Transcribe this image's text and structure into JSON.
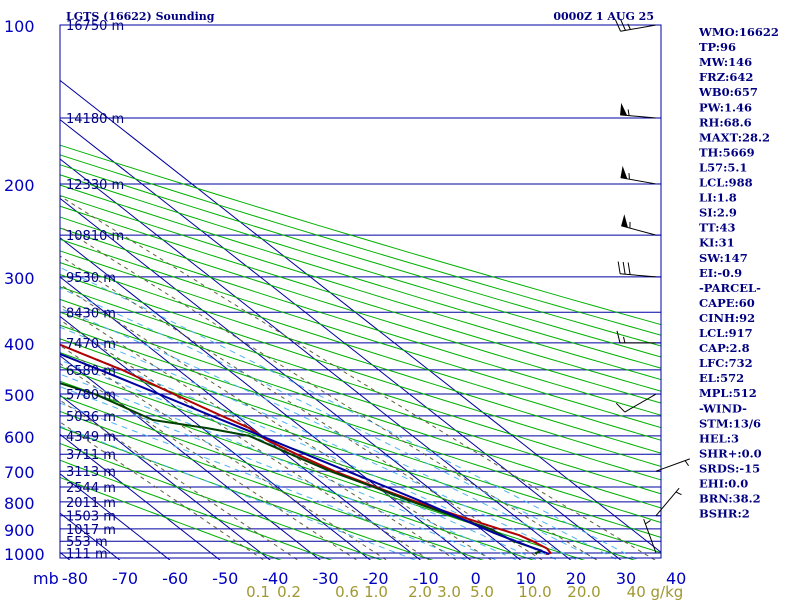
{
  "chart_data": {
    "type": "line",
    "title": "LGTS (16622) Sounding",
    "datetime": "0000Z  1 AUG 25",
    "xlabel": "",
    "ylabel": "",
    "temperature_axis": {
      "range": [
        -80,
        40
      ],
      "ticks": [
        "-80",
        "-70",
        "-60",
        "-50",
        "-40",
        "-30",
        "-20",
        "-10",
        "0",
        "10",
        "20",
        "30",
        "40"
      ]
    },
    "pressure_axis": {
      "unit_label": "mb",
      "scale": "log",
      "range": [
        100,
        1050
      ],
      "levels": [
        100,
        150,
        200,
        250,
        300,
        350,
        400,
        450,
        500,
        550,
        600,
        650,
        700,
        750,
        800,
        850,
        900,
        950,
        1000
      ],
      "labels": [
        "100",
        "200",
        "300",
        "400",
        "500",
        "600",
        "700",
        "800",
        "900",
        "1000"
      ],
      "label_values": [
        100,
        200,
        300,
        400,
        500,
        600,
        700,
        800,
        900,
        1000
      ]
    },
    "height_labels": [
      {
        "p": 100,
        "text": "16750 m"
      },
      {
        "p": 150,
        "text": "14180 m"
      },
      {
        "p": 200,
        "text": "12330 m"
      },
      {
        "p": 250,
        "text": "10810 m"
      },
      {
        "p": 300,
        "text": "9530 m"
      },
      {
        "p": 350,
        "text": "8430 m"
      },
      {
        "p": 400,
        "text": "7470 m"
      },
      {
        "p": 450,
        "text": "6580 m"
      },
      {
        "p": 500,
        "text": "5780 m"
      },
      {
        "p": 550,
        "text": "5036 m"
      },
      {
        "p": 600,
        "text": "4349 m"
      },
      {
        "p": 650,
        "text": "3711 m"
      },
      {
        "p": 700,
        "text": "3113 m"
      },
      {
        "p": 750,
        "text": "2544 m"
      },
      {
        "p": 800,
        "text": "2011 m"
      },
      {
        "p": 850,
        "text": "1503 m"
      },
      {
        "p": 900,
        "text": "1017 m"
      },
      {
        "p": 950,
        "text": "553 m"
      },
      {
        "p": 1000,
        "text": "111 m"
      }
    ],
    "mixing_ratio_labels": [
      "0.1",
      "0.2",
      "0.6",
      "1.0",
      "2.0",
      "3.0",
      "5.0",
      "10.0",
      "20.0",
      "40 g/kg"
    ],
    "series": [
      {
        "name": "",
        "role": "temperature",
        "color": "#b00000",
        "points": [
          {
            "p": 1005,
            "t": 16.6
          },
          {
            "p": 1000,
            "t": 17.8
          },
          {
            "p": 980,
            "t": 18.2
          },
          {
            "p": 950,
            "t": 17.2
          },
          {
            "p": 925,
            "t": 16.0
          },
          {
            "p": 900,
            "t": 13.6
          },
          {
            "p": 850,
            "t": 8.8
          },
          {
            "p": 800,
            "t": 4.0
          },
          {
            "p": 750,
            "t": -0.4
          },
          {
            "p": 700,
            "t": -4.6
          },
          {
            "p": 650,
            "t": -7.8
          },
          {
            "p": 610,
            "t": -10.2
          },
          {
            "p": 580,
            "t": -10.6
          },
          {
            "p": 550,
            "t": -13.0
          },
          {
            "p": 500,
            "t": -17.0
          },
          {
            "p": 450,
            "t": -21.2
          },
          {
            "p": 420,
            "t": -25.0
          },
          {
            "p": 400,
            "t": -27.6
          },
          {
            "p": 350,
            "t": -34.6
          },
          {
            "p": 320,
            "t": -38.8
          },
          {
            "p": 300,
            "t": -40.6
          },
          {
            "p": 290,
            "t": -40.2
          },
          {
            "p": 270,
            "t": -41.8
          },
          {
            "p": 250,
            "t": -46.0
          },
          {
            "p": 225,
            "t": -52.0
          },
          {
            "p": 200,
            "t": -55.8
          },
          {
            "p": 170,
            "t": -62.2
          },
          {
            "p": 150,
            "t": -69.2
          },
          {
            "p": 130,
            "t": -72.0
          },
          {
            "p": 120,
            "t": -75.4
          },
          {
            "p": 110,
            "t": -76.0
          },
          {
            "p": 100,
            "t": -79.4
          }
        ]
      },
      {
        "name": "",
        "role": "dewpoint",
        "color": "#004000",
        "points": [
          {
            "p": 1005,
            "t": 14.8
          },
          {
            "p": 1000,
            "t": 14.8
          },
          {
            "p": 990,
            "t": 16.6
          },
          {
            "p": 950,
            "t": 13.4
          },
          {
            "p": 925,
            "t": 12.6
          },
          {
            "p": 900,
            "t": 11.8
          },
          {
            "p": 850,
            "t": 7.6
          },
          {
            "p": 800,
            "t": 3.2
          },
          {
            "p": 750,
            "t": -0.8
          },
          {
            "p": 700,
            "t": -5.4
          },
          {
            "p": 650,
            "t": -9.0
          },
          {
            "p": 600,
            "t": -12.6
          },
          {
            "p": 580,
            "t": -19.0
          },
          {
            "p": 560,
            "t": -27.8
          },
          {
            "p": 500,
            "t": -32.8
          },
          {
            "p": 450,
            "t": -42.0
          },
          {
            "p": 400,
            "t": -53.6
          },
          {
            "p": 320,
            "t": -56.8
          },
          {
            "p": 300,
            "t": -66.4
          },
          {
            "p": 280,
            "t": -68.0
          },
          {
            "p": 250,
            "t": -72.8
          },
          {
            "p": 200,
            "t": -79.6
          }
        ]
      },
      {
        "name": "",
        "role": "parcel",
        "color": "#0000a0",
        "points": [
          {
            "p": 1005,
            "t": 17.2
          },
          {
            "p": 1000,
            "t": 17.0
          },
          {
            "p": 917,
            "t": 11.6
          },
          {
            "p": 850,
            "t": 8.0
          },
          {
            "p": 800,
            "t": 5.2
          },
          {
            "p": 750,
            "t": 1.8
          },
          {
            "p": 700,
            "t": -2.0
          },
          {
            "p": 650,
            "t": -6.0
          },
          {
            "p": 600,
            "t": -10.2
          },
          {
            "p": 550,
            "t": -15.0
          },
          {
            "p": 500,
            "t": -20.0
          },
          {
            "p": 450,
            "t": -25.6
          },
          {
            "p": 400,
            "t": -32.4
          },
          {
            "p": 350,
            "t": -39.8
          },
          {
            "p": 300,
            "t": -48.4
          },
          {
            "p": 250,
            "t": -58.6
          },
          {
            "p": 200,
            "t": -70.6
          },
          {
            "p": 170,
            "t": -79.4
          }
        ]
      }
    ],
    "wind_barbs": [
      {
        "p": 100,
        "dir": 260,
        "kt": 25
      },
      {
        "p": 150,
        "dir": 275,
        "kt": 55
      },
      {
        "p": 200,
        "dir": 280,
        "kt": 55
      },
      {
        "p": 250,
        "dir": 285,
        "kt": 55
      },
      {
        "p": 300,
        "dir": 275,
        "kt": 30
      },
      {
        "p": 400,
        "dir": 270,
        "kt": 15
      },
      {
        "p": 500,
        "dir": 240,
        "kt": 10
      },
      {
        "p": 700,
        "dir": 70,
        "kt": 5
      },
      {
        "p": 850,
        "dir": 40,
        "kt": 5
      },
      {
        "p": 1000,
        "dir": 340,
        "kt": 5
      }
    ],
    "indices": [
      "WMO:16622",
      "TP:96",
      "MW:146",
      "FRZ:642",
      "WB0:657",
      "PW:1.46",
      "RH:68.6",
      "MAXT:28.2",
      "TH:5669",
      "L57:5.1",
      "LCL:988",
      "LI:1.8",
      "SI:2.9",
      "TT:43",
      "KI:31",
      "SW:147",
      "EI:-0.9",
      "-PARCEL-",
      "CAPE:60",
      "CINH:92",
      "LCL:917",
      "CAP:2.8",
      "LFC:732",
      "EL:572",
      "MPL:512",
      "-WIND-",
      "STM:13/6",
      "HEL:3",
      "SHR+:0.0",
      "SRDS:-15",
      "EHI:0.0",
      "BRN:38.2",
      "BSHR:2"
    ],
    "colors": {
      "grid": "#0000a0",
      "isotherm": "#0000a0",
      "dry_adiabat": "#00b000",
      "moist_adiabat": "#50b4f0",
      "mixing_ratio": "#606040",
      "text": "#000080",
      "axis_labels": "#0000c0",
      "mixing_labels": "#a09830",
      "wind_barb": "#000000"
    }
  }
}
